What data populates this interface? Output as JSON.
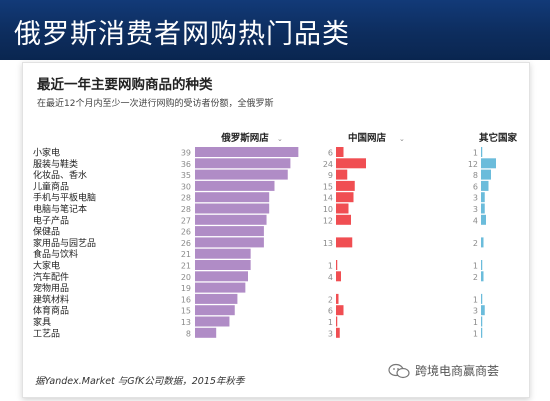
{
  "header": {
    "title": "俄罗斯消费者网购热门品类"
  },
  "chart": {
    "title": "最近一年主要网购商品的种类",
    "subtitle": "在最近12个月内至少一次进行网购的受访者份额，全俄罗斯",
    "source": "据Yandex.Market 与GfK公司数据，2015年秋季",
    "sort_marker": "⌄"
  },
  "watermark": {
    "text": "跨境电商赢商荟"
  },
  "colors": {
    "russia": "#b08cc6",
    "china": "#f04e52",
    "other": "#6bbcdb"
  },
  "chart_data": {
    "type": "bar",
    "orientation": "horizontal",
    "categories": [
      "小家电",
      "服装与鞋类",
      "化妆品、香水",
      "儿童商品",
      "手机与平板电脑",
      "电脑与笔记本",
      "电子产品",
      "保健品",
      "家用品与园艺品",
      "食品与饮料",
      "大家电",
      "汽车配件",
      "宠物用品",
      "建筑材料",
      "体育商品",
      "家具",
      "工艺品"
    ],
    "series": [
      {
        "name": "俄罗斯网店",
        "values": [
          39,
          36,
          35,
          30,
          28,
          28,
          27,
          26,
          26,
          21,
          21,
          20,
          19,
          16,
          15,
          13,
          8
        ]
      },
      {
        "name": "中国网店",
        "values": [
          6,
          24,
          9,
          15,
          14,
          10,
          12,
          null,
          13,
          null,
          1,
          4,
          null,
          2,
          6,
          1,
          3
        ]
      },
      {
        "name": "其它国家",
        "values": [
          1,
          12,
          8,
          6,
          3,
          3,
          4,
          null,
          2,
          null,
          1,
          2,
          null,
          1,
          3,
          1,
          1
        ]
      }
    ]
  }
}
